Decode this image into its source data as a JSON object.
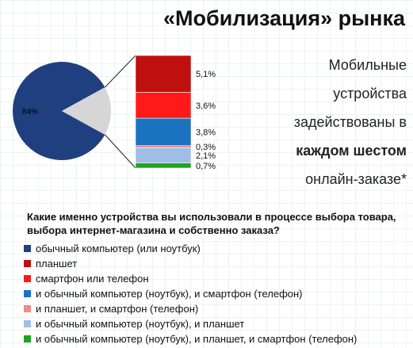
{
  "header": {
    "title": "«Мобилизация» рынка"
  },
  "side_text": {
    "line1": "Мобильные",
    "line2": "устройства",
    "line3": "задействованы в",
    "line4": "каждом шестом",
    "line5": "онлайн-заказе*"
  },
  "question": "Какие именно устройства вы использовали в процессе выбора товара, выбора интернет-магазина и собственно заказа?",
  "chart_data": {
    "type": "pie",
    "pie": {
      "slices": [
        {
          "label": "84%",
          "value": 84,
          "color": "#1f3f7f"
        },
        {
          "label": "",
          "value": 16,
          "color": "#d6d6d6"
        }
      ]
    },
    "breakdown": {
      "type": "stacked-bar",
      "segments": [
        {
          "label": "5,1%",
          "value": 5.1,
          "color": "#bf0f0f"
        },
        {
          "label": "3,6%",
          "value": 3.6,
          "color": "#ff1a1a"
        },
        {
          "label": "3,8%",
          "value": 3.8,
          "color": "#1b72bf"
        },
        {
          "label": "0,3%",
          "value": 0.3,
          "color": "#f28a8a"
        },
        {
          "label": "2,1%",
          "value": 2.1,
          "color": "#9fbde6"
        },
        {
          "label": "0,7%",
          "value": 0.7,
          "color": "#1fa31f"
        }
      ]
    },
    "legend": [
      {
        "label": "обычный компьютер (или ноутбук)",
        "color": "#1f3f7f"
      },
      {
        "label": "планшет",
        "color": "#bf0f0f"
      },
      {
        "label": "смартфон или телефон",
        "color": "#ff1a1a"
      },
      {
        "label": "и обычный компьютер (ноутбук), и смартфон (телефон)",
        "color": "#1b72bf"
      },
      {
        "label": "и планшет, и смартфон (телефон)",
        "color": "#f28a8a"
      },
      {
        "label": "и обычный компьютер (ноутбук), и планшет",
        "color": "#9fbde6"
      },
      {
        "label": "и обычный компьютер (ноутбук), и планшет, и смартфон (телефон)",
        "color": "#1fa31f"
      }
    ]
  }
}
